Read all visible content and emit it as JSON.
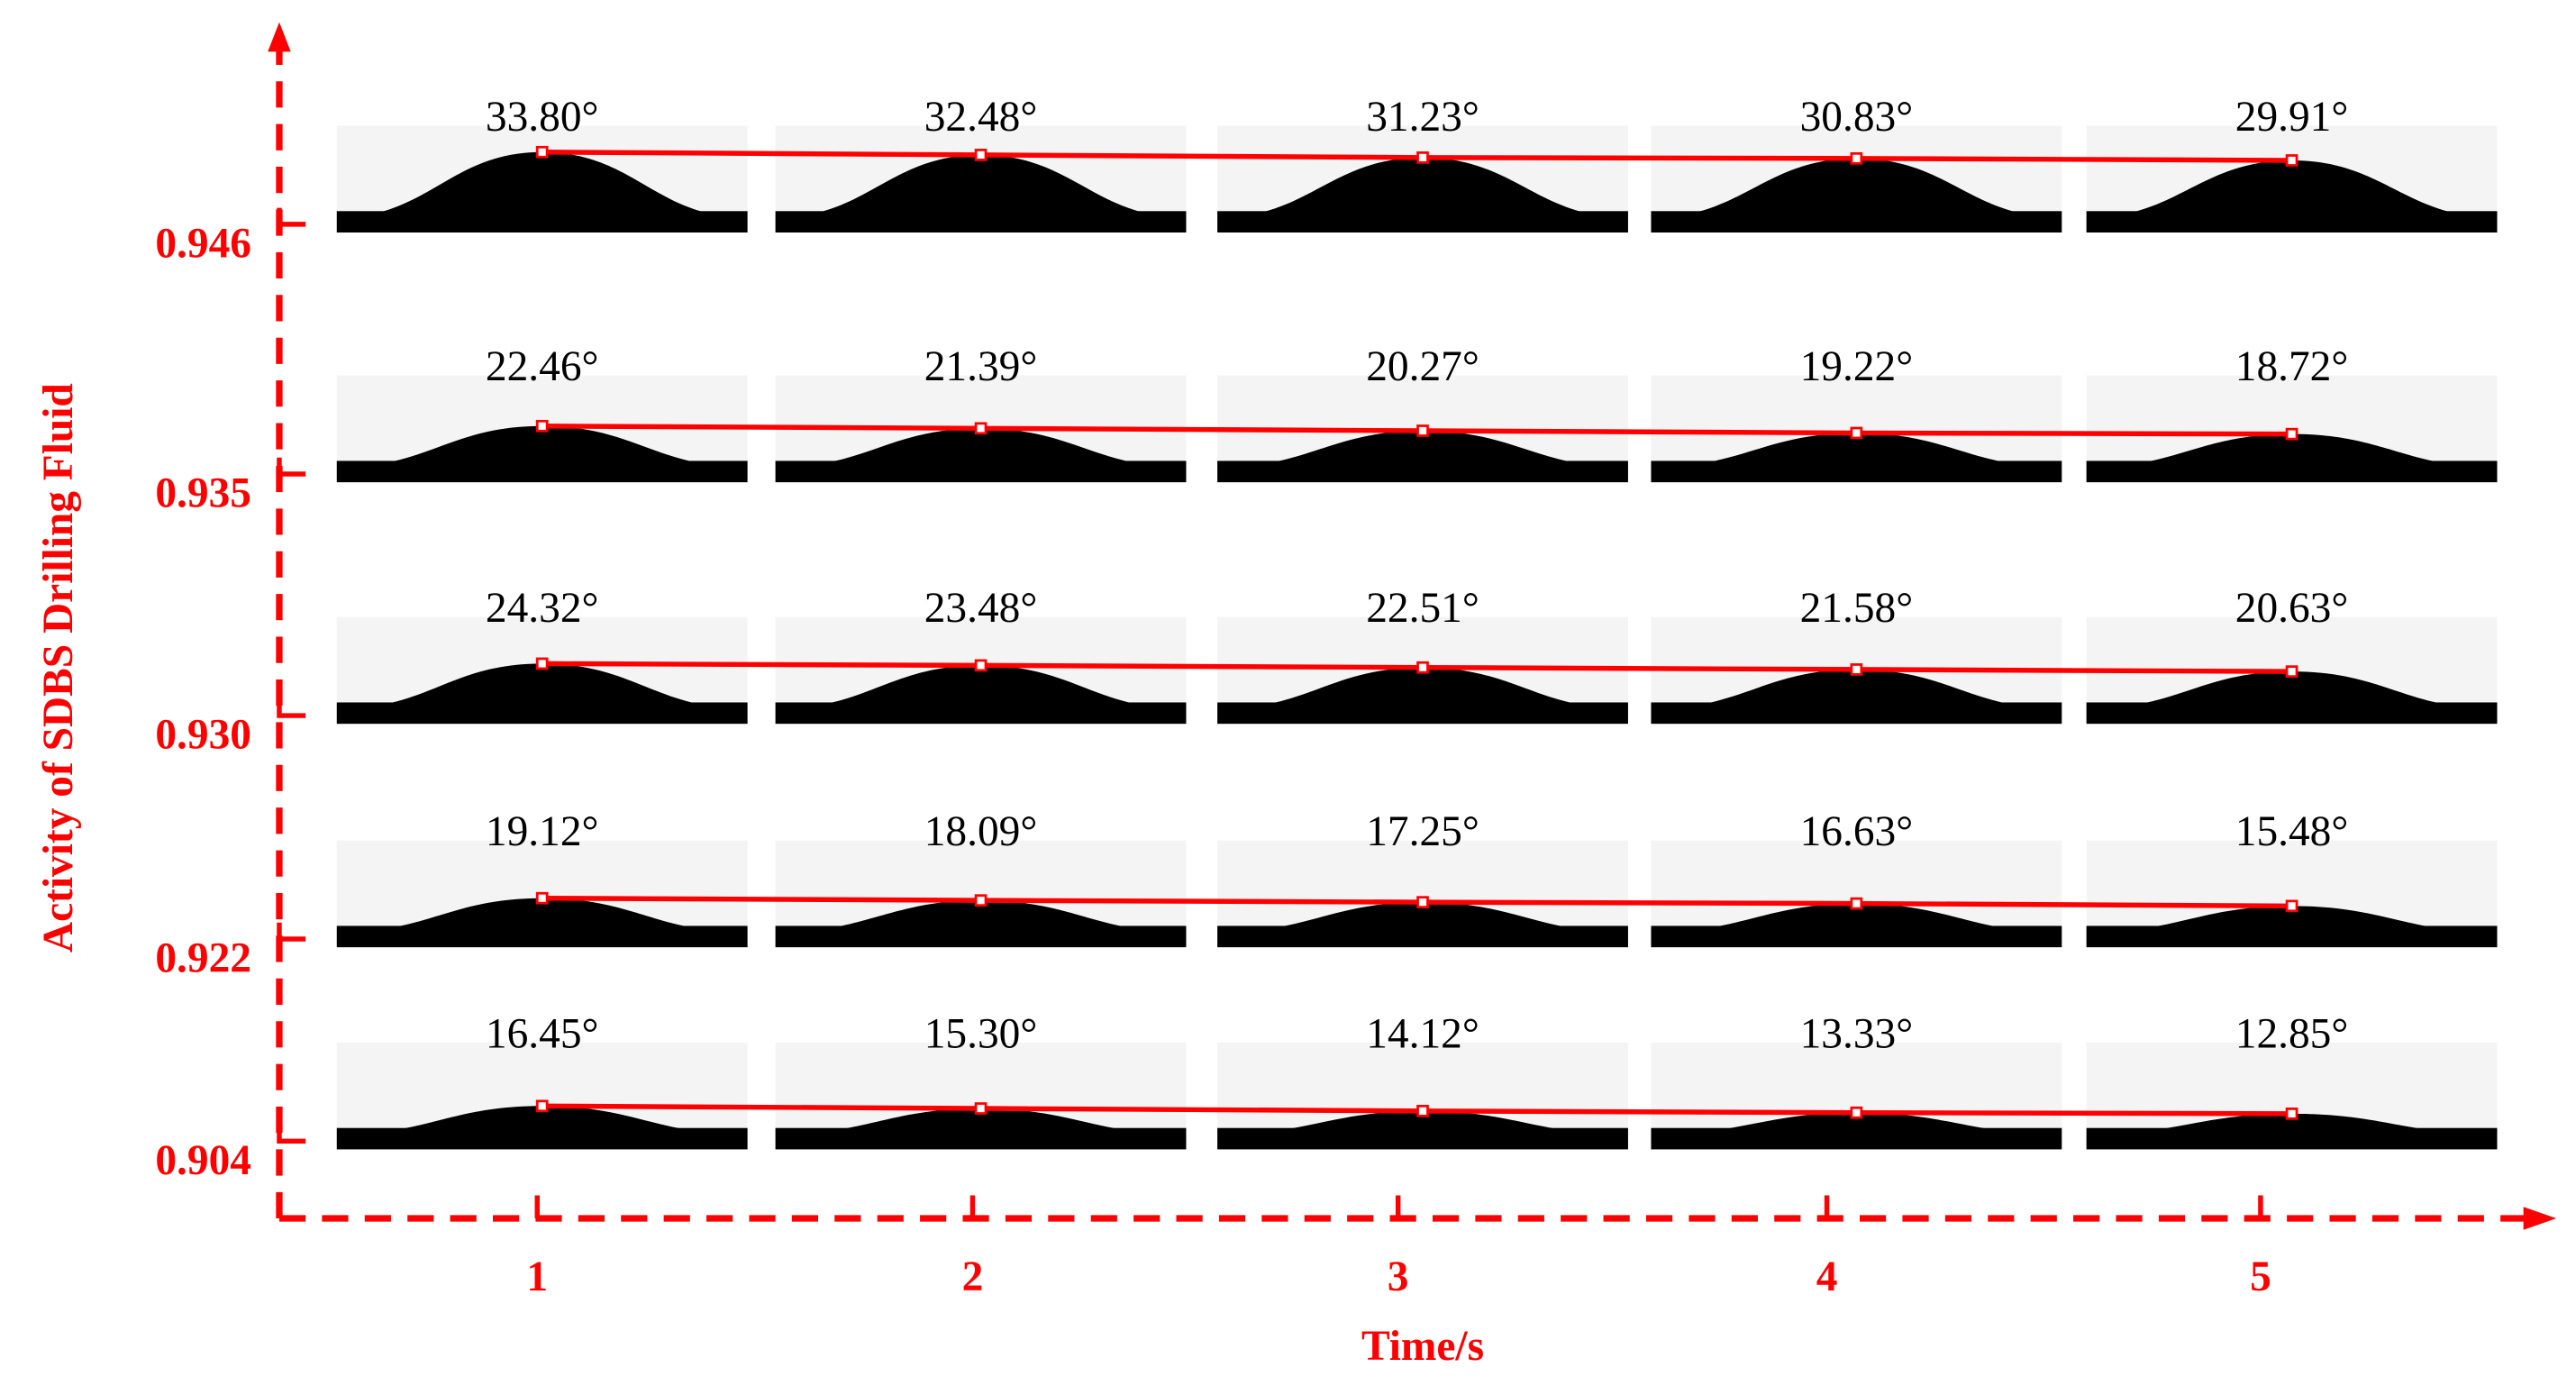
{
  "chart_data": {
    "type": "droplet-grid",
    "x_label": "Time/s",
    "y_label": "Activity of SDBS Drilling Fluid",
    "categories": [
      1,
      2,
      3,
      4,
      5
    ],
    "axis_color": "#ff0000",
    "line_color": "#ff0000",
    "droplet_color": "#000000",
    "series": [
      {
        "name": "0.946",
        "values": [
          33.8,
          32.48,
          31.23,
          30.83,
          29.91
        ],
        "value_labels": [
          "33.80°",
          "32.48°",
          "31.23°",
          "30.83°",
          "29.91°"
        ]
      },
      {
        "name": "0.935",
        "values": [
          22.46,
          21.39,
          20.27,
          19.22,
          18.72
        ],
        "value_labels": [
          "22.46°",
          "21.39°",
          "20.27°",
          "19.22°",
          "18.72°"
        ]
      },
      {
        "name": "0.930",
        "values": [
          24.32,
          23.48,
          22.51,
          21.58,
          20.63
        ],
        "value_labels": [
          "24.32°",
          "23.48°",
          "22.51°",
          "21.58°",
          "20.63°"
        ]
      },
      {
        "name": "0.922",
        "values": [
          19.12,
          18.09,
          17.25,
          16.63,
          15.48
        ],
        "value_labels": [
          "19.12°",
          "18.09°",
          "17.25°",
          "16.63°",
          "15.48°"
        ]
      },
      {
        "name": "0.904",
        "values": [
          16.45,
          15.3,
          14.12,
          13.33,
          12.85
        ],
        "value_labels": [
          "16.45°",
          "15.30°",
          "14.12°",
          "13.33°",
          "12.85°"
        ]
      }
    ]
  }
}
